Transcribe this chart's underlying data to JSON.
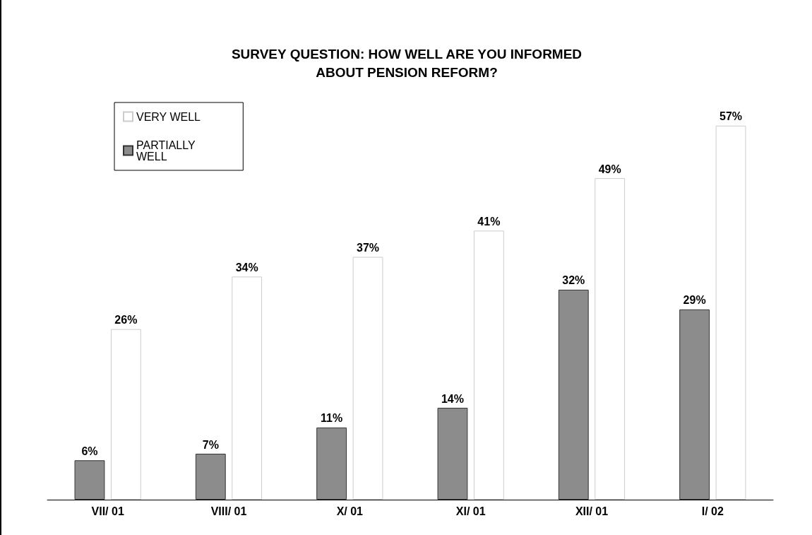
{
  "chart_data": {
    "type": "bar",
    "title": "SURVEY QUESTION: HOW WELL ARE YOU INFORMED\nABOUT PENSION REFORM?",
    "categories": [
      "VII/ 01",
      "VIII/ 01",
      "X/ 01",
      "XI/ 01",
      "XII/ 01",
      "I/ 02"
    ],
    "series": [
      {
        "name": "PARTIALLY\nWELL",
        "color": "#8c8c8c",
        "values": [
          6,
          7,
          11,
          14,
          32,
          29
        ],
        "value_labels": [
          "6%",
          "7%",
          "11%",
          "14%",
          "32%",
          "29%"
        ]
      },
      {
        "name": "VERY WELL",
        "color": "#ffffff",
        "values": [
          26,
          34,
          37,
          41,
          49,
          57
        ],
        "value_labels": [
          "26%",
          "34%",
          "37%",
          "41%",
          "49%",
          "57%"
        ]
      }
    ],
    "legend": "top left"
  }
}
